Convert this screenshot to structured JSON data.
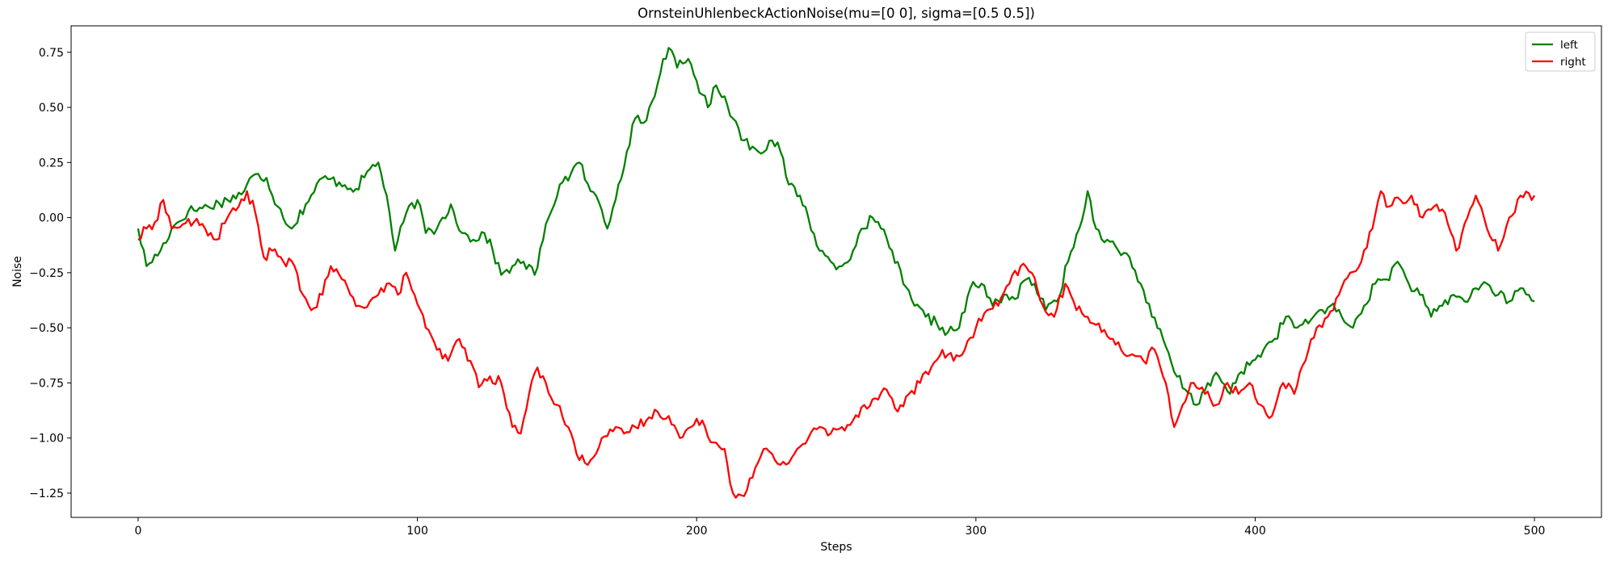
{
  "chart_data": {
    "type": "line",
    "title": "OrnsteinUhlenbeckActionNoise(mu=[0 0], sigma=[0.5 0.5])",
    "xlabel": "Steps",
    "ylabel": "Noise",
    "xlim": [
      -24,
      524
    ],
    "ylim": [
      -1.36,
      0.87
    ],
    "xticks": [
      0,
      100,
      200,
      300,
      400,
      500
    ],
    "xtick_labels": [
      "0",
      "100",
      "200",
      "300",
      "400",
      "500"
    ],
    "yticks": [
      0.75,
      0.5,
      0.25,
      0.0,
      -0.25,
      -0.5,
      -0.75,
      -1.0,
      -1.25
    ],
    "ytick_labels": [
      "0.75",
      "0.50",
      "0.25",
      "0.00",
      "−0.25",
      "−0.50",
      "−0.75",
      "−1.00",
      "−1.25"
    ],
    "grid": false,
    "legend_position": "top-right",
    "series": [
      {
        "name": "left",
        "color": "#008000",
        "anchors": [
          [
            0,
            -0.05
          ],
          [
            3,
            -0.22
          ],
          [
            8,
            -0.15
          ],
          [
            12,
            -0.05
          ],
          [
            18,
            0.03
          ],
          [
            25,
            0.05
          ],
          [
            32,
            0.08
          ],
          [
            38,
            0.12
          ],
          [
            41,
            0.19
          ],
          [
            46,
            0.18
          ],
          [
            50,
            0.05
          ],
          [
            55,
            -0.05
          ],
          [
            60,
            0.06
          ],
          [
            66,
            0.18
          ],
          [
            72,
            0.16
          ],
          [
            78,
            0.13
          ],
          [
            83,
            0.22
          ],
          [
            86,
            0.25
          ],
          [
            89,
            0.1
          ],
          [
            92,
            -0.15
          ],
          [
            96,
            0.02
          ],
          [
            100,
            0.08
          ],
          [
            103,
            -0.07
          ],
          [
            107,
            -0.05
          ],
          [
            112,
            0.06
          ],
          [
            116,
            -0.07
          ],
          [
            120,
            -0.1
          ],
          [
            124,
            -0.07
          ],
          [
            127,
            -0.15
          ],
          [
            130,
            -0.26
          ],
          [
            134,
            -0.22
          ],
          [
            138,
            -0.2
          ],
          [
            142,
            -0.26
          ],
          [
            147,
            0.0
          ],
          [
            151,
            0.15
          ],
          [
            155,
            0.2
          ],
          [
            158,
            0.25
          ],
          [
            162,
            0.12
          ],
          [
            165,
            0.07
          ],
          [
            168,
            -0.05
          ],
          [
            172,
            0.15
          ],
          [
            175,
            0.3
          ],
          [
            178,
            0.45
          ],
          [
            181,
            0.43
          ],
          [
            185,
            0.55
          ],
          [
            188,
            0.72
          ],
          [
            190,
            0.77
          ],
          [
            193,
            0.68
          ],
          [
            197,
            0.72
          ],
          [
            200,
            0.62
          ],
          [
            204,
            0.5
          ],
          [
            207,
            0.6
          ],
          [
            210,
            0.55
          ],
          [
            213,
            0.45
          ],
          [
            217,
            0.35
          ],
          [
            222,
            0.3
          ],
          [
            227,
            0.35
          ],
          [
            230,
            0.3
          ],
          [
            233,
            0.15
          ],
          [
            237,
            0.1
          ],
          [
            240,
            0.0
          ],
          [
            244,
            -0.15
          ],
          [
            248,
            -0.2
          ],
          [
            252,
            -0.22
          ],
          [
            256,
            -0.15
          ],
          [
            260,
            -0.05
          ],
          [
            263,
            0.0
          ],
          [
            266,
            -0.05
          ],
          [
            270,
            -0.15
          ],
          [
            274,
            -0.3
          ],
          [
            278,
            -0.4
          ],
          [
            282,
            -0.45
          ],
          [
            286,
            -0.48
          ],
          [
            290,
            -0.52
          ],
          [
            294,
            -0.5
          ],
          [
            298,
            -0.32
          ],
          [
            302,
            -0.3
          ],
          [
            306,
            -0.4
          ],
          [
            310,
            -0.35
          ],
          [
            314,
            -0.37
          ],
          [
            318,
            -0.28
          ],
          [
            321,
            -0.3
          ],
          [
            325,
            -0.42
          ],
          [
            329,
            -0.38
          ],
          [
            333,
            -0.2
          ],
          [
            337,
            -0.05
          ],
          [
            340,
            0.12
          ],
          [
            343,
            -0.05
          ],
          [
            347,
            -0.1
          ],
          [
            351,
            -0.15
          ],
          [
            355,
            -0.18
          ],
          [
            359,
            -0.3
          ],
          [
            363,
            -0.45
          ],
          [
            367,
            -0.55
          ],
          [
            371,
            -0.7
          ],
          [
            375,
            -0.78
          ],
          [
            379,
            -0.85
          ],
          [
            383,
            -0.75
          ],
          [
            387,
            -0.72
          ],
          [
            391,
            -0.8
          ],
          [
            395,
            -0.7
          ],
          [
            399,
            -0.65
          ],
          [
            403,
            -0.6
          ],
          [
            407,
            -0.55
          ],
          [
            411,
            -0.45
          ],
          [
            415,
            -0.5
          ],
          [
            419,
            -0.48
          ],
          [
            423,
            -0.42
          ],
          [
            427,
            -0.4
          ],
          [
            431,
            -0.45
          ],
          [
            435,
            -0.5
          ],
          [
            439,
            -0.4
          ],
          [
            443,
            -0.3
          ],
          [
            447,
            -0.28
          ],
          [
            451,
            -0.2
          ],
          [
            455,
            -0.3
          ],
          [
            459,
            -0.35
          ],
          [
            463,
            -0.45
          ],
          [
            467,
            -0.4
          ],
          [
            471,
            -0.35
          ],
          [
            475,
            -0.38
          ],
          [
            479,
            -0.32
          ],
          [
            483,
            -0.3
          ],
          [
            487,
            -0.35
          ],
          [
            491,
            -0.38
          ],
          [
            495,
            -0.32
          ],
          [
            500,
            -0.38
          ]
        ]
      },
      {
        "name": "right",
        "color": "#ff0000",
        "anchors": [
          [
            0,
            -0.1
          ],
          [
            3,
            -0.05
          ],
          [
            6,
            -0.02
          ],
          [
            9,
            0.08
          ],
          [
            12,
            -0.05
          ],
          [
            16,
            -0.03
          ],
          [
            20,
            -0.02
          ],
          [
            24,
            -0.05
          ],
          [
            28,
            -0.1
          ],
          [
            32,
            0.0
          ],
          [
            36,
            0.05
          ],
          [
            39,
            0.12
          ],
          [
            42,
            0.02
          ],
          [
            45,
            -0.18
          ],
          [
            48,
            -0.15
          ],
          [
            52,
            -0.2
          ],
          [
            56,
            -0.22
          ],
          [
            59,
            -0.35
          ],
          [
            62,
            -0.42
          ],
          [
            66,
            -0.35
          ],
          [
            69,
            -0.22
          ],
          [
            73,
            -0.28
          ],
          [
            76,
            -0.35
          ],
          [
            79,
            -0.4
          ],
          [
            83,
            -0.38
          ],
          [
            86,
            -0.35
          ],
          [
            89,
            -0.3
          ],
          [
            93,
            -0.35
          ],
          [
            96,
            -0.25
          ],
          [
            99,
            -0.35
          ],
          [
            103,
            -0.5
          ],
          [
            107,
            -0.6
          ],
          [
            111,
            -0.65
          ],
          [
            115,
            -0.55
          ],
          [
            119,
            -0.65
          ],
          [
            122,
            -0.77
          ],
          [
            126,
            -0.72
          ],
          [
            130,
            -0.75
          ],
          [
            134,
            -0.95
          ],
          [
            137,
            -0.98
          ],
          [
            140,
            -0.8
          ],
          [
            143,
            -0.68
          ],
          [
            146,
            -0.75
          ],
          [
            150,
            -0.85
          ],
          [
            154,
            -0.95
          ],
          [
            158,
            -1.1
          ],
          [
            162,
            -1.1
          ],
          [
            166,
            -1.0
          ],
          [
            170,
            -0.97
          ],
          [
            174,
            -0.98
          ],
          [
            178,
            -0.95
          ],
          [
            182,
            -0.92
          ],
          [
            186,
            -0.88
          ],
          [
            190,
            -0.9
          ],
          [
            194,
            -1.0
          ],
          [
            198,
            -0.95
          ],
          [
            202,
            -0.92
          ],
          [
            206,
            -1.02
          ],
          [
            210,
            -1.05
          ],
          [
            213,
            -1.25
          ],
          [
            216,
            -1.26
          ],
          [
            220,
            -1.18
          ],
          [
            224,
            -1.05
          ],
          [
            228,
            -1.1
          ],
          [
            232,
            -1.12
          ],
          [
            236,
            -1.05
          ],
          [
            240,
            -1.0
          ],
          [
            244,
            -0.95
          ],
          [
            248,
            -0.98
          ],
          [
            252,
            -0.95
          ],
          [
            256,
            -0.92
          ],
          [
            260,
            -0.85
          ],
          [
            264,
            -0.82
          ],
          [
            268,
            -0.78
          ],
          [
            272,
            -0.88
          ],
          [
            276,
            -0.8
          ],
          [
            280,
            -0.75
          ],
          [
            284,
            -0.68
          ],
          [
            288,
            -0.6
          ],
          [
            292,
            -0.65
          ],
          [
            296,
            -0.6
          ],
          [
            300,
            -0.5
          ],
          [
            304,
            -0.42
          ],
          [
            308,
            -0.4
          ],
          [
            312,
            -0.3
          ],
          [
            316,
            -0.22
          ],
          [
            320,
            -0.25
          ],
          [
            324,
            -0.4
          ],
          [
            328,
            -0.45
          ],
          [
            332,
            -0.3
          ],
          [
            336,
            -0.42
          ],
          [
            340,
            -0.45
          ],
          [
            344,
            -0.48
          ],
          [
            348,
            -0.55
          ],
          [
            352,
            -0.6
          ],
          [
            356,
            -0.62
          ],
          [
            360,
            -0.65
          ],
          [
            364,
            -0.6
          ],
          [
            368,
            -0.75
          ],
          [
            371,
            -0.95
          ],
          [
            374,
            -0.85
          ],
          [
            378,
            -0.75
          ],
          [
            382,
            -0.8
          ],
          [
            386,
            -0.85
          ],
          [
            390,
            -0.75
          ],
          [
            394,
            -0.8
          ],
          [
            398,
            -0.75
          ],
          [
            402,
            -0.85
          ],
          [
            406,
            -0.9
          ],
          [
            410,
            -0.75
          ],
          [
            414,
            -0.8
          ],
          [
            418,
            -0.65
          ],
          [
            422,
            -0.5
          ],
          [
            426,
            -0.45
          ],
          [
            430,
            -0.35
          ],
          [
            434,
            -0.25
          ],
          [
            438,
            -0.2
          ],
          [
            442,
            -0.05
          ],
          [
            445,
            0.12
          ],
          [
            448,
            0.05
          ],
          [
            452,
            0.08
          ],
          [
            456,
            0.1
          ],
          [
            460,
            0.0
          ],
          [
            464,
            0.05
          ],
          [
            468,
            0.02
          ],
          [
            472,
            -0.15
          ],
          [
            476,
            0.0
          ],
          [
            479,
            0.1
          ],
          [
            483,
            -0.05
          ],
          [
            487,
            -0.15
          ],
          [
            491,
            0.0
          ],
          [
            495,
            0.1
          ],
          [
            500,
            0.1
          ]
        ]
      }
    ]
  }
}
